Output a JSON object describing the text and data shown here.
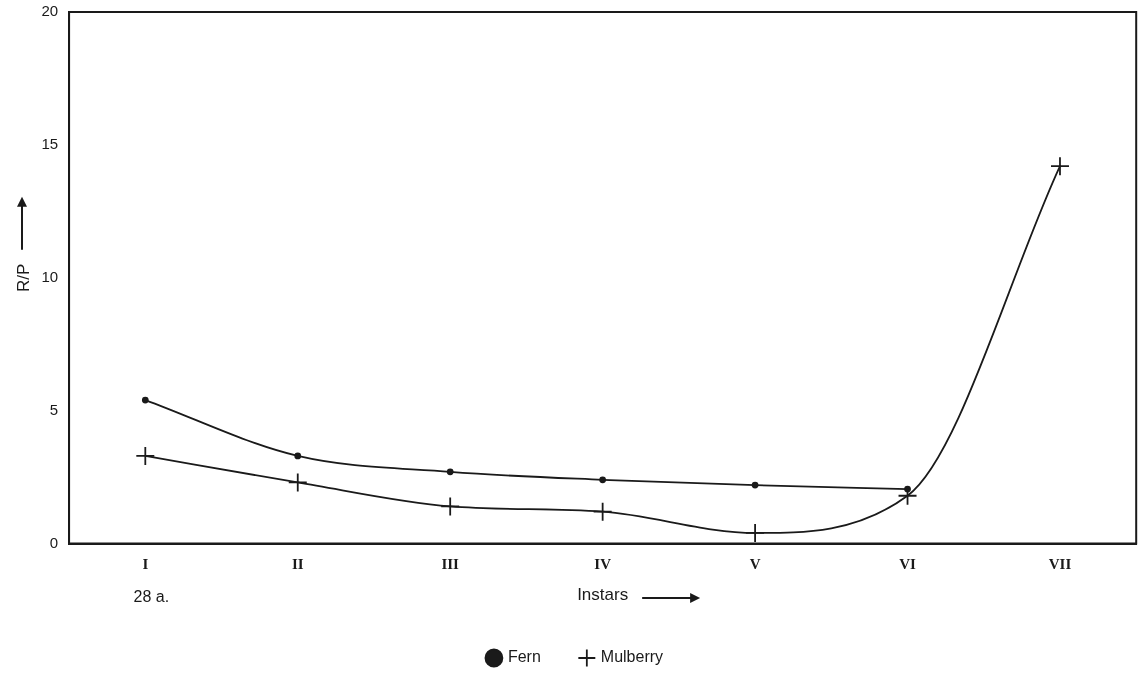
{
  "chart_data": {
    "type": "line",
    "xlabel": "Instars",
    "ylabel": "R/P",
    "categories": [
      "I",
      "II",
      "III",
      "IV",
      "V",
      "VI",
      "VII"
    ],
    "series": [
      {
        "name": "Fern",
        "color": "#1a1a1a",
        "marker": "circle",
        "values": [
          5.4,
          3.3,
          2.7,
          2.4,
          2.2,
          2.05,
          null
        ]
      },
      {
        "name": "Mulberry",
        "color": "#1a1a1a",
        "marker": "cross",
        "values": [
          3.3,
          2.3,
          1.4,
          1.2,
          0.4,
          1.8,
          14.2
        ]
      }
    ],
    "ylim": [
      0,
      20
    ],
    "yticks": [
      0,
      5,
      10,
      15,
      20
    ],
    "grid": false,
    "legend": "bottom",
    "annotations": [
      "28 a."
    ]
  }
}
